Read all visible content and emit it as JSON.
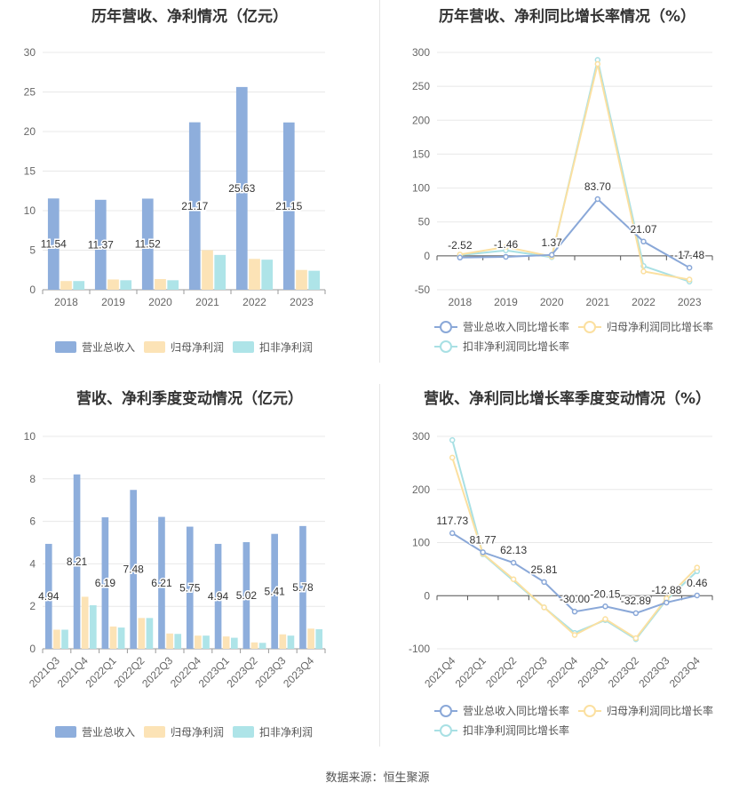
{
  "footer": "数据来源：恒生聚源",
  "colors": {
    "revenue": "#8eaedc",
    "parent": "#fce3b6",
    "deducted": "#aee4e8",
    "rev_line": "#8aa8d8",
    "parent_line": "#fbe0a0",
    "ded_line": "#a8e0e4",
    "grid": "#e8e8e8",
    "axis": "#999999"
  },
  "chart_data": [
    {
      "type": "bar",
      "title": "历年营收、净利情况（亿元）",
      "categories": [
        "2018",
        "2019",
        "2020",
        "2021",
        "2022",
        "2023"
      ],
      "ylim": [
        0,
        30
      ],
      "yticks": [
        0,
        5,
        10,
        15,
        20,
        25,
        30
      ],
      "series": [
        {
          "name": "营业总收入",
          "values": [
            11.54,
            11.37,
            11.52,
            21.17,
            25.63,
            21.15
          ],
          "labels": [
            "11.54",
            "11.37",
            "11.52",
            "21.17",
            "25.63",
            "21.15"
          ]
        },
        {
          "name": "归母净利润",
          "values": [
            1.1,
            1.3,
            1.35,
            5.0,
            3.9,
            2.5
          ]
        },
        {
          "name": "扣非净利润",
          "values": [
            1.1,
            1.2,
            1.2,
            4.4,
            3.8,
            2.4
          ]
        }
      ]
    },
    {
      "type": "line",
      "title": "历年营收、净利同比增长率情况（%）",
      "categories": [
        "2018",
        "2019",
        "2020",
        "2021",
        "2022",
        "2023"
      ],
      "ylim": [
        -50,
        300
      ],
      "yticks": [
        -50,
        0,
        50,
        100,
        150,
        200,
        250,
        300
      ],
      "series": [
        {
          "name": "营业总收入同比增长率",
          "values": [
            -2.52,
            -1.46,
            1.37,
            83.7,
            21.07,
            -17.48
          ],
          "labels": [
            "-2.52",
            "-1.46",
            "1.37",
            "83.70",
            "21.07",
            "-17.48"
          ]
        },
        {
          "name": "归母净利润同比增长率",
          "values": [
            2,
            13,
            -1,
            283,
            -23,
            -35
          ]
        },
        {
          "name": "扣非净利润同比增长率",
          "values": [
            1,
            8,
            -2,
            289,
            -15,
            -38
          ]
        }
      ]
    },
    {
      "type": "bar",
      "title": "营收、净利季度变动情况（亿元）",
      "categories": [
        "2021Q3",
        "2021Q4",
        "2022Q1",
        "2022Q2",
        "2022Q3",
        "2022Q4",
        "2023Q1",
        "2023Q2",
        "2023Q3",
        "2023Q4"
      ],
      "ylim": [
        0,
        10
      ],
      "yticks": [
        0,
        2,
        4,
        6,
        8,
        10
      ],
      "series": [
        {
          "name": "营业总收入",
          "values": [
            4.94,
            8.21,
            6.19,
            7.48,
            6.21,
            5.75,
            4.94,
            5.02,
            5.41,
            5.78
          ],
          "labels": [
            "4.94",
            "8.21",
            "6.19",
            "7.48",
            "6.21",
            "5.75",
            "4.94",
            "5.02",
            "5.41",
            "5.78"
          ]
        },
        {
          "name": "归母净利润",
          "values": [
            0.9,
            2.45,
            1.05,
            1.45,
            0.72,
            0.62,
            0.58,
            0.3,
            0.68,
            0.95
          ]
        },
        {
          "name": "扣非净利润",
          "values": [
            0.9,
            2.05,
            1.0,
            1.45,
            0.7,
            0.62,
            0.52,
            0.28,
            0.62,
            0.92
          ]
        }
      ]
    },
    {
      "type": "line",
      "title": "营收、净利同比增长率季度变动情况（%）",
      "categories": [
        "2021Q4",
        "2022Q1",
        "2022Q2",
        "2022Q3",
        "2022Q4",
        "2023Q1",
        "2023Q2",
        "2023Q3",
        "2023Q4"
      ],
      "ylim": [
        -100,
        300
      ],
      "yticks": [
        -100,
        0,
        100,
        200,
        300
      ],
      "series": [
        {
          "name": "营业总收入同比增长率",
          "values": [
            117.73,
            81.77,
            62.13,
            25.81,
            -30.0,
            -20.15,
            -32.89,
            -12.88,
            0.46
          ],
          "labels": [
            "117.73",
            "81.77",
            "62.13",
            "25.81",
            "-30.00",
            "-20.15",
            "-32.89",
            "-12.88",
            "0.46"
          ]
        },
        {
          "name": "归母净利润同比增长率",
          "values": [
            260,
            79,
            31,
            -22,
            -74,
            -44,
            -80,
            -5,
            53
          ]
        },
        {
          "name": "扣非净利润同比增长率",
          "values": [
            293,
            78,
            null,
            -22,
            -70,
            -46,
            -82,
            -8,
            46
          ]
        }
      ]
    }
  ]
}
